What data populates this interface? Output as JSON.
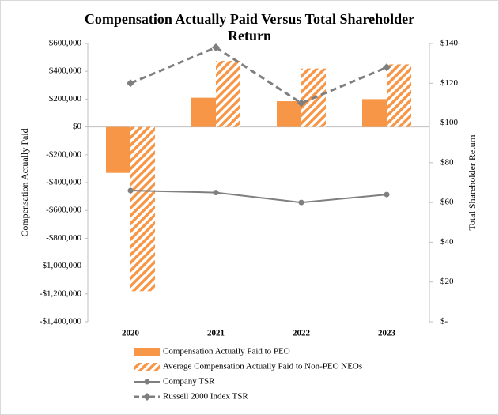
{
  "chart_data": {
    "type": "bar-line",
    "title": "Compensation Actually Paid Versus Total Shareholder Return",
    "ylabel": "Compensation Actually Paid",
    "y2label": "Total Shareholder Return",
    "categories": [
      "2020",
      "2021",
      "2022",
      "2023"
    ],
    "ylim": [
      -1400000,
      600000
    ],
    "yticks": [
      {
        "value": 600000,
        "label": "$600,000"
      },
      {
        "value": 400000,
        "label": "$400,000"
      },
      {
        "value": 200000,
        "label": "$200,000"
      },
      {
        "value": 0,
        "label": "$0"
      },
      {
        "value": -200000,
        "label": "-$200,000"
      },
      {
        "value": -400000,
        "label": "-$400,000"
      },
      {
        "value": -600000,
        "label": "-$600,000"
      },
      {
        "value": -800000,
        "label": "-$800,000"
      },
      {
        "value": -1000000,
        "label": "-$1,000,000"
      },
      {
        "value": -1200000,
        "label": "-$1,200,000"
      },
      {
        "value": -1400000,
        "label": "-$1,400,000"
      }
    ],
    "y2lim": [
      0,
      140
    ],
    "y2ticks": [
      {
        "value": 140,
        "label": "$140"
      },
      {
        "value": 120,
        "label": "$120"
      },
      {
        "value": 100,
        "label": "$100"
      },
      {
        "value": 80,
        "label": "$80"
      },
      {
        "value": 60,
        "label": "$60"
      },
      {
        "value": 40,
        "label": "$40"
      },
      {
        "value": 20,
        "label": "$20"
      },
      {
        "value": 0,
        "label": "$-"
      }
    ],
    "grid": false,
    "legend": "bottom",
    "series": [
      {
        "name": "Compensation Actually Paid to PEO",
        "kind": "bar",
        "fill": "solid",
        "color": "#f79646",
        "values": [
          -330000,
          210000,
          185000,
          200000
        ]
      },
      {
        "name": "Average Compensation Actually Paid to Non-PEO NEOs",
        "kind": "bar",
        "fill": "hatch",
        "color": "#f79646",
        "values": [
          -1180000,
          475000,
          420000,
          450000
        ]
      },
      {
        "name": "Company TSR",
        "kind": "line",
        "axis": "y2",
        "dash": false,
        "marker": "circle",
        "color": "#7f7f7f",
        "values": [
          66,
          65,
          60,
          64
        ]
      },
      {
        "name": "Russell 2000 Index TSR",
        "kind": "line",
        "axis": "y2",
        "dash": true,
        "marker": "diamond",
        "color": "#7f7f7f",
        "values": [
          120,
          138,
          110,
          128
        ]
      }
    ]
  }
}
